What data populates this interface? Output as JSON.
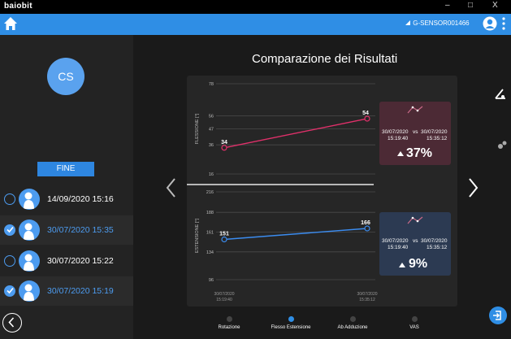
{
  "window": {
    "title": "baiobit",
    "minimize": "–",
    "maximize": "□",
    "close": "X"
  },
  "header": {
    "sensor": "G-SENSOR001466"
  },
  "patient": {
    "initials": "CS"
  },
  "sidebar": {
    "fine_label": "FINE",
    "sessions": [
      {
        "date": "14/09/2020 15:16",
        "selected": false
      },
      {
        "date": "30/07/2020 15:35",
        "selected": true
      },
      {
        "date": "30/07/2020 15:22",
        "selected": false
      },
      {
        "date": "30/07/2020 15:19",
        "selected": true
      }
    ]
  },
  "main": {
    "title": "Comparazione dei Risultati",
    "tabs": [
      {
        "label": "Rotazione",
        "active": false
      },
      {
        "label": "Flesso Estensione",
        "active": true
      },
      {
        "label": "Ab Adduzione",
        "active": false
      },
      {
        "label": "VAS",
        "active": false
      }
    ]
  },
  "chart_data": [
    {
      "type": "line",
      "ylabel": "FLESSIONE [°]",
      "yticks": [
        16,
        36,
        47,
        56,
        78
      ],
      "ylim": [
        16,
        78
      ],
      "x": [
        "30/07/2020 15:19:40",
        "30/07/2020 15:35:12"
      ],
      "series": [
        {
          "values": [
            34,
            54
          ],
          "color": "#e0306a"
        }
      ],
      "data_labels": [
        "34",
        "54"
      ]
    },
    {
      "type": "line",
      "ylabel": "ESTENSIONE [°]",
      "yticks": [
        96,
        134,
        161,
        188,
        216
      ],
      "ylim": [
        96,
        216
      ],
      "x": [
        "30/07/2020 15:19:40",
        "30/07/2020 15:35:12"
      ],
      "series": [
        {
          "values": [
            151,
            166
          ],
          "color": "#3b8cf0"
        }
      ],
      "data_labels": [
        "151",
        "166"
      ]
    }
  ],
  "x_tick_labels": {
    "left_date": "30/07/2020",
    "left_time": "15:19:40",
    "right_date": "30/07/2020",
    "right_time": "15:35:12"
  },
  "cards": {
    "flex": {
      "date1": "30/07/2020",
      "time1": "15:19:40",
      "vs": "vs",
      "date2": "30/07/2020",
      "time2": "15:35:12",
      "pct": "37%"
    },
    "ext": {
      "date1": "30/07/2020",
      "time1": "15:19:40",
      "vs": "vs",
      "date2": "30/07/2020",
      "time2": "15:35:12",
      "pct": "9%"
    }
  },
  "colors": {
    "accent": "#2f8ee5",
    "flex_line": "#e0306a",
    "ext_line": "#3b8cf0"
  }
}
